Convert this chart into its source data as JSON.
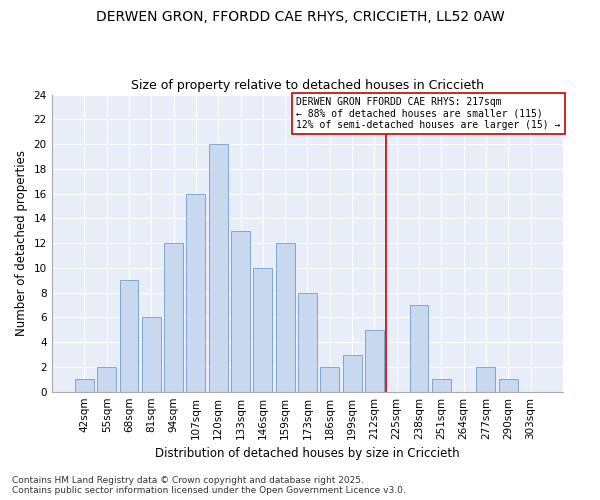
{
  "title": "DERWEN GRON, FFORDD CAE RHYS, CRICCIETH, LL52 0AW",
  "subtitle": "Size of property relative to detached houses in Criccieth",
  "xlabel": "Distribution of detached houses by size in Criccieth",
  "ylabel": "Number of detached properties",
  "bar_labels": [
    "42sqm",
    "55sqm",
    "68sqm",
    "81sqm",
    "94sqm",
    "107sqm",
    "120sqm",
    "133sqm",
    "146sqm",
    "159sqm",
    "173sqm",
    "186sqm",
    "199sqm",
    "212sqm",
    "225sqm",
    "238sqm",
    "251sqm",
    "264sqm",
    "277sqm",
    "290sqm",
    "303sqm"
  ],
  "bar_values": [
    1,
    2,
    9,
    6,
    12,
    16,
    20,
    13,
    10,
    12,
    8,
    2,
    3,
    5,
    0,
    7,
    1,
    0,
    2,
    1,
    0
  ],
  "bar_color": "#c8d8ee",
  "bar_edge_color": "#6e9fcc",
  "vline_x": 13.5,
  "vline_color": "#cc0000",
  "annotation_text": "DERWEN GRON FFORDD CAE RHYS: 217sqm\n← 88% of detached houses are smaller (115)\n12% of semi-detached houses are larger (15) →",
  "annotation_box_color": "#ffffff",
  "annotation_box_edge": "#cc0000",
  "ylim": [
    0,
    24
  ],
  "yticks": [
    0,
    2,
    4,
    6,
    8,
    10,
    12,
    14,
    16,
    18,
    20,
    22,
    24
  ],
  "footnote1": "Contains HM Land Registry data © Crown copyright and database right 2025.",
  "footnote2": "Contains public sector information licensed under the Open Government Licence v3.0.",
  "background_color": "#ffffff",
  "plot_background": "#e8eef8",
  "title_fontsize": 10,
  "subtitle_fontsize": 9,
  "xlabel_fontsize": 8.5,
  "ylabel_fontsize": 8.5,
  "tick_fontsize": 7.5,
  "annotation_fontsize": 7,
  "footnote_fontsize": 6.5
}
